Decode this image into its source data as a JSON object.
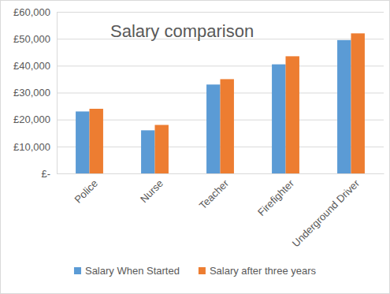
{
  "chart_data": {
    "type": "bar",
    "title": "Salary comparison",
    "categories": [
      "Police",
      "Nurse",
      "Teacher",
      "Firefighter",
      "Underground Driver"
    ],
    "series": [
      {
        "name": "Salary When Started",
        "color": "#5b9bd5",
        "values": [
          23000,
          16000,
          33000,
          40500,
          49500
        ]
      },
      {
        "name": "Salary after three years",
        "color": "#ed7d31",
        "values": [
          24000,
          18000,
          35000,
          43500,
          52000
        ]
      }
    ],
    "ylim": [
      0,
      60000
    ],
    "yticks": [
      {
        "value": 0,
        "label": "£-"
      },
      {
        "value": 10000,
        "label": "£10,000"
      },
      {
        "value": 20000,
        "label": "£20,000"
      },
      {
        "value": 30000,
        "label": "£30,000"
      },
      {
        "value": 40000,
        "label": "£40,000"
      },
      {
        "value": 50000,
        "label": "£50,000"
      },
      {
        "value": 60000,
        "label": "£60,000"
      }
    ],
    "grid": true,
    "legend": "bottom"
  }
}
